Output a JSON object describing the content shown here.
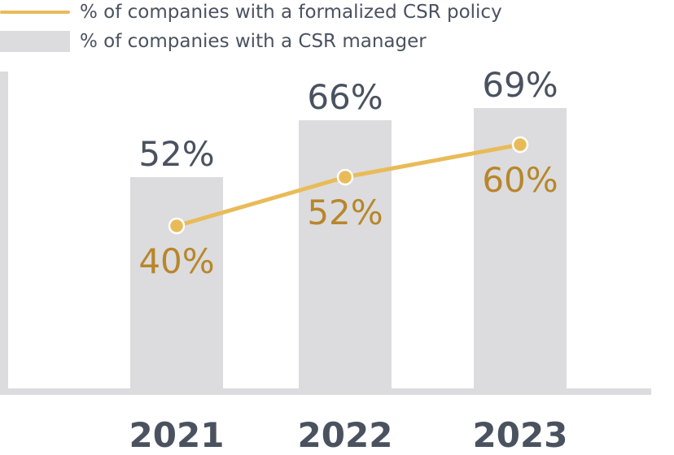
{
  "chart_data": {
    "type": "bar",
    "categories": [
      "2021",
      "2022",
      "2023"
    ],
    "series": [
      {
        "name": "% of companies with a CSR manager",
        "kind": "bar",
        "values": [
          52,
          66,
          69
        ],
        "labels": [
          "52%",
          "66%",
          "69%"
        ],
        "color": "#dcdcde"
      },
      {
        "name": "% of companies with a formalized CSR policy",
        "kind": "line",
        "values": [
          40,
          52,
          60
        ],
        "labels": [
          "40%",
          "52%",
          "60%"
        ],
        "color": "#e9bb58"
      }
    ],
    "title": "",
    "xlabel": "",
    "ylabel": "",
    "legend": "top-left",
    "grid": false
  },
  "colors": {
    "bar_label": "#4a5260",
    "line_label": "#b8862b",
    "axis": "#dcdcde",
    "legend_text": "#4a5260"
  }
}
